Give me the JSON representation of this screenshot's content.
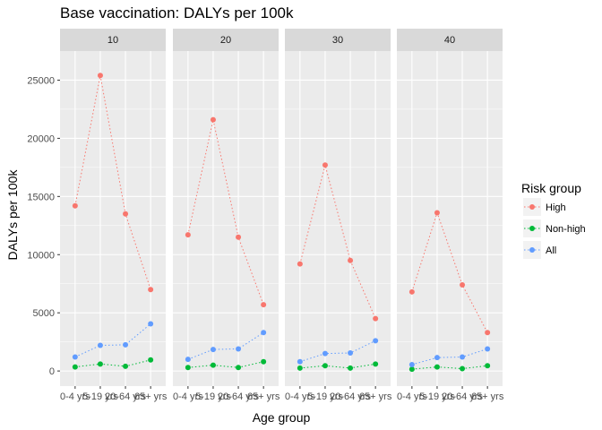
{
  "chart_data": {
    "type": "line",
    "title": "Base vaccination: DALYs per 100k",
    "xlabel": "Age group",
    "ylabel": "DALYs per 100k",
    "categories": [
      "0-4 yrs",
      "5-19 yrs",
      "20-64 yrs",
      "65+ yrs"
    ],
    "ylim": [
      -1300,
      27500
    ],
    "yticks": [
      0,
      5000,
      10000,
      15000,
      20000,
      25000
    ],
    "facet_labels": [
      "10",
      "20",
      "30",
      "40"
    ],
    "legend": {
      "title": "Risk group",
      "position": "right"
    },
    "colors": {
      "High": "#F8766D",
      "Non-high": "#00BA38",
      "All": "#619CFF"
    },
    "facets": [
      {
        "label": "10",
        "series": [
          {
            "name": "High",
            "values": [
              14200,
              25400,
              13500,
              7000
            ]
          },
          {
            "name": "Non-high",
            "values": [
              350,
              600,
              400,
              950
            ]
          },
          {
            "name": "All",
            "values": [
              1200,
              2200,
              2250,
              4050
            ]
          }
        ]
      },
      {
        "label": "20",
        "series": [
          {
            "name": "High",
            "values": [
              11700,
              21600,
              11500,
              5700
            ]
          },
          {
            "name": "Non-high",
            "values": [
              300,
              500,
              300,
              800
            ]
          },
          {
            "name": "All",
            "values": [
              1000,
              1850,
              1900,
              3300
            ]
          }
        ]
      },
      {
        "label": "30",
        "series": [
          {
            "name": "High",
            "values": [
              9200,
              17700,
              9500,
              4500
            ]
          },
          {
            "name": "Non-high",
            "values": [
              250,
              450,
              250,
              600
            ]
          },
          {
            "name": "All",
            "values": [
              800,
              1500,
              1550,
              2600
            ]
          }
        ]
      },
      {
        "label": "40",
        "series": [
          {
            "name": "High",
            "values": [
              6800,
              13600,
              7400,
              3300
            ]
          },
          {
            "name": "Non-high",
            "values": [
              150,
              350,
              200,
              450
            ]
          },
          {
            "name": "All",
            "values": [
              550,
              1150,
              1200,
              1900
            ]
          }
        ]
      }
    ]
  }
}
